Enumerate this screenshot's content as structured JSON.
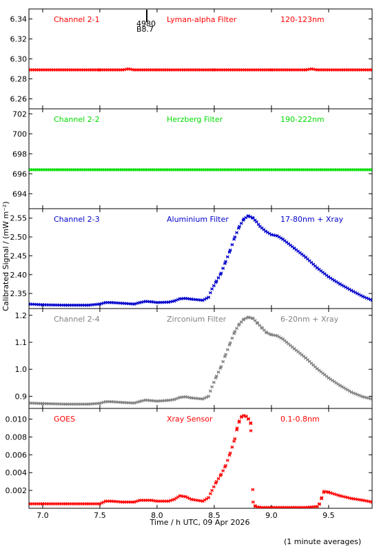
{
  "xaxis": {
    "label": "Time / h UTC, 09 Apr 2026",
    "xlim": [
      6.88,
      9.88
    ],
    "ticks": [
      7.0,
      7.5,
      8.0,
      8.5,
      9.0,
      9.5
    ],
    "tick_labels": [
      "7.0",
      "7.5",
      "8.0",
      "8.5",
      "9.0",
      "9.5"
    ]
  },
  "ylabel": "Calibrated Signal / (mW m⁻²)",
  "footnote": "(1 minute averages)",
  "marker": {
    "label_top": "4980",
    "label_bottom": "B8.7",
    "x": 7.91
  },
  "chart_data": [
    {
      "type": "scatter",
      "channel": "Channel 2-1",
      "filter": "Lyman-alpha Filter",
      "band": "120-123nm",
      "color": "#ff0000",
      "ylim": [
        6.25,
        6.35
      ],
      "yticks": [
        6.26,
        6.28,
        6.3,
        6.32,
        6.34
      ],
      "ytick_labels": [
        "6.26",
        "6.28",
        "6.30",
        "6.32",
        "6.34"
      ],
      "x": [
        6.88,
        7.5,
        7.7,
        7.75,
        7.8,
        8.0,
        8.5,
        9.0,
        9.3,
        9.35,
        9.4,
        9.88
      ],
      "y": [
        6.289,
        6.289,
        6.289,
        6.29,
        6.289,
        6.289,
        6.289,
        6.289,
        6.289,
        6.29,
        6.289,
        6.289
      ]
    },
    {
      "type": "scatter",
      "channel": "Channel 2-2",
      "filter": "Herzberg Filter",
      "band": "190-222nm",
      "color": "#00dd00",
      "ylim": [
        692.5,
        702.5
      ],
      "yticks": [
        694,
        696,
        698,
        700,
        702
      ],
      "ytick_labels": [
        "694",
        "696",
        "698",
        "700",
        "702"
      ],
      "x": [
        6.88,
        9.88
      ],
      "y": [
        696.4,
        696.4
      ]
    },
    {
      "type": "scatter",
      "channel": "Channel 2-3",
      "filter": "Aluminium Filter",
      "band": "17-80nm + Xray",
      "color": "#0000cc",
      "ylim": [
        2.31,
        2.575
      ],
      "yticks": [
        2.35,
        2.4,
        2.45,
        2.5,
        2.55
      ],
      "ytick_labels": [
        "2.35",
        "2.40",
        "2.45",
        "2.50",
        "2.55"
      ],
      "x": [
        6.88,
        7.0,
        7.2,
        7.4,
        7.5,
        7.55,
        7.6,
        7.7,
        7.8,
        7.85,
        7.9,
        7.95,
        8.0,
        8.1,
        8.15,
        8.2,
        8.25,
        8.3,
        8.4,
        8.45,
        8.48,
        8.52,
        8.56,
        8.6,
        8.64,
        8.68,
        8.72,
        8.76,
        8.8,
        8.84,
        8.87,
        8.9,
        8.95,
        9.0,
        9.05,
        9.1,
        9.2,
        9.3,
        9.4,
        9.5,
        9.6,
        9.7,
        9.8,
        9.88
      ],
      "y": [
        2.322,
        2.32,
        2.319,
        2.319,
        2.322,
        2.326,
        2.326,
        2.324,
        2.322,
        2.326,
        2.329,
        2.328,
        2.326,
        2.327,
        2.33,
        2.336,
        2.337,
        2.335,
        2.332,
        2.34,
        2.362,
        2.383,
        2.404,
        2.435,
        2.465,
        2.5,
        2.528,
        2.548,
        2.556,
        2.55,
        2.54,
        2.528,
        2.515,
        2.506,
        2.503,
        2.494,
        2.47,
        2.446,
        2.418,
        2.394,
        2.375,
        2.358,
        2.342,
        2.332
      ]
    },
    {
      "type": "scatter",
      "channel": "Channel 2-4",
      "filter": "Zirconium Filter",
      "band": "6-20nm + Xray",
      "color": "#808080",
      "ylim": [
        0.855,
        1.225
      ],
      "yticks": [
        0.9,
        1.0,
        1.1,
        1.2
      ],
      "ytick_labels": [
        "0.9",
        "1.0",
        "1.1",
        "1.2"
      ],
      "x": [
        6.88,
        7.0,
        7.2,
        7.4,
        7.5,
        7.55,
        7.6,
        7.7,
        7.8,
        7.85,
        7.9,
        7.95,
        8.0,
        8.1,
        8.15,
        8.2,
        8.25,
        8.3,
        8.4,
        8.45,
        8.48,
        8.52,
        8.56,
        8.6,
        8.64,
        8.68,
        8.72,
        8.76,
        8.8,
        8.84,
        8.88,
        8.92,
        8.96,
        9.0,
        9.05,
        9.1,
        9.2,
        9.3,
        9.4,
        9.5,
        9.6,
        9.7,
        9.8,
        9.88
      ],
      "y": [
        0.875,
        0.873,
        0.871,
        0.871,
        0.874,
        0.88,
        0.88,
        0.877,
        0.875,
        0.881,
        0.886,
        0.884,
        0.882,
        0.885,
        0.888,
        0.896,
        0.898,
        0.894,
        0.89,
        0.9,
        0.935,
        0.975,
        1.01,
        1.055,
        1.098,
        1.14,
        1.168,
        1.186,
        1.193,
        1.188,
        1.17,
        1.152,
        1.135,
        1.128,
        1.124,
        1.112,
        1.076,
        1.042,
        1.002,
        0.968,
        0.94,
        0.915,
        0.898,
        0.89
      ]
    },
    {
      "type": "scatter",
      "channel": "GOES",
      "filter": "Xray Sensor",
      "band": "0.1-0.8nm",
      "color": "#ff0000",
      "ylim": [
        0.0,
        0.0112
      ],
      "yticks": [
        0.002,
        0.004,
        0.006,
        0.008,
        0.01
      ],
      "ytick_labels": [
        "0.002",
        "0.004",
        "0.006",
        "0.008",
        "0.010"
      ],
      "x": [
        6.88,
        7.0,
        7.2,
        7.4,
        7.5,
        7.55,
        7.6,
        7.7,
        7.8,
        7.85,
        7.9,
        7.95,
        8.0,
        8.1,
        8.15,
        8.2,
        8.25,
        8.3,
        8.4,
        8.45,
        8.48,
        8.52,
        8.56,
        8.6,
        8.64,
        8.68,
        8.7,
        8.72,
        8.74,
        8.76,
        8.78,
        8.8,
        8.82,
        8.82,
        8.84,
        8.86,
        8.9,
        9.0,
        9.1,
        9.2,
        9.3,
        9.4,
        9.42,
        9.44,
        9.46,
        9.5,
        9.6,
        9.7,
        9.8,
        9.88
      ],
      "y": [
        0.0005,
        0.0005,
        0.0005,
        0.0005,
        0.0005,
        0.0008,
        0.0008,
        0.0007,
        0.0007,
        0.0009,
        0.0009,
        0.0009,
        0.0008,
        0.0008,
        0.001,
        0.0014,
        0.0013,
        0.001,
        0.0008,
        0.0012,
        0.002,
        0.003,
        0.0038,
        0.0048,
        0.0062,
        0.0078,
        0.009,
        0.0098,
        0.0103,
        0.0104,
        0.0103,
        0.01,
        0.0095,
        0.0087,
        0.0007,
        0.0002,
        0.0001,
        0.0001,
        0.0001,
        0.0001,
        0.0001,
        0.0002,
        0.0005,
        0.0012,
        0.0019,
        0.0018,
        0.0014,
        0.0011,
        0.0009,
        0.0007
      ]
    }
  ]
}
